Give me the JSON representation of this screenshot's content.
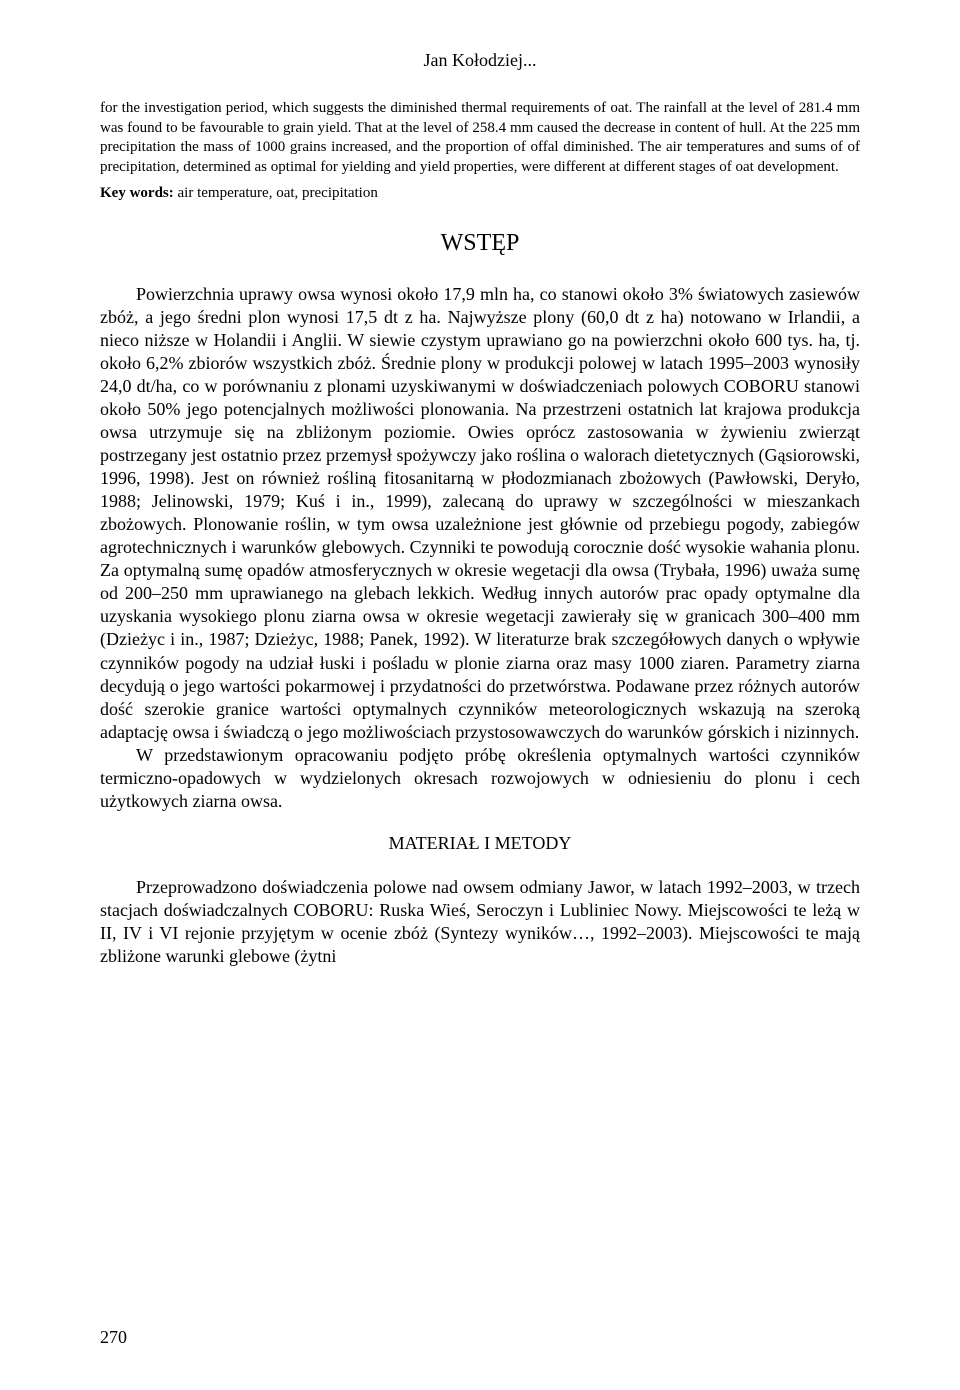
{
  "header": {
    "author": "Jan Kołodziej..."
  },
  "abstract": {
    "text": "for the investigation period, which suggests the diminished thermal requirements of oat. The rainfall at the level of 281.4 mm was found to be favourable to grain yield. That at the level of 258.4 mm caused the decrease in content of hull. At the 225 mm precipitation the mass of 1000 grains increased, and the proportion of offal diminished. The air temperatures and sums of of precipitation, determined as optimal for yielding and yield properties, were different at different stages of oat development."
  },
  "keywords": {
    "label": "Key words:",
    "text": " air temperature, oat, precipitation"
  },
  "sections": {
    "wstep": {
      "title": "WSTĘP",
      "para1": "Powierzchnia uprawy owsa wynosi około 17,9 mln ha, co stanowi około 3% światowych zasiewów zbóż, a jego średni plon wynosi 17,5 dt z ha. Najwyższe plony (60,0 dt z ha) notowano w Irlandii, a nieco niższe w Holandii i Anglii. W siewie czystym uprawiano go na powierzchni około 600 tys. ha, tj. około 6,2% zbiorów wszystkich zbóż. Średnie plony w produkcji polowej w latach 1995–2003 wynosiły 24,0 dt/ha, co w porównaniu z plonami uzyskiwanymi w doświadczeniach polowych COBORU stanowi około 50% jego potencjalnych możliwości plonowania. Na przestrzeni ostatnich lat krajowa produkcja owsa utrzymuje się na zbliżonym poziomie. Owies oprócz zastosowania w żywieniu zwierząt postrzegany jest ostatnio przez przemysł spożywczy jako roślina o walorach dietetycznych (Gąsiorowski, 1996, 1998). Jest on również rośliną fitosanitarną w płodozmianach zbożowych (Pawłowski, Deryło, 1988; Jelinowski, 1979; Kuś i in., 1999), zalecaną do uprawy w szczególności w mieszankach zbożowych. Plonowanie roślin, w tym owsa uzależnione jest głównie od przebiegu pogody, zabiegów agrotechnicznych i warunków glebowych. Czynniki te powodują corocznie dość wysokie wahania plonu. Za optymalną sumę opadów atmosferycznych w okresie wegetacji dla owsa (Trybała, 1996) uważa sumę od 200–250 mm uprawianego na glebach lekkich. Według innych autorów prac opady optymalne dla uzyskania wysokiego plonu ziarna owsa w okresie wegetacji zawierały się w granicach 300–400 mm (Dzieżyc i in., 1987; Dzieżyc, 1988; Panek, 1992). W literaturze brak szczegółowych danych o wpływie czynników pogody na udział łuski i pośladu w plonie ziarna oraz masy 1000 ziaren. Parametry ziarna decydują o jego wartości pokarmowej i przydatności do przetwórstwa. Podawane przez różnych autorów dość szerokie granice wartości optymalnych czynników meteorologicznych wskazują na szeroką adaptację owsa i świadczą o jego możliwościach przystosowawczych do warunków górskich i nizinnych.",
      "para2": "W przedstawionym opracowaniu podjęto próbę określenia optymalnych wartości czynników termiczno-opadowych w wydzielonych okresach rozwojowych w odniesieniu do plonu i cech użytkowych ziarna owsa."
    },
    "material": {
      "title": "MATERIAŁ I METODY",
      "para1": "Przeprowadzono doświadczenia polowe nad owsem odmiany Jawor, w latach 1992–2003, w trzech stacjach doświadczalnych COBORU: Ruska Wieś, Seroczyn i Lubliniec Nowy. Miejscowości te leżą w II, IV i VI rejonie przyjętym w ocenie zbóż (Syntezy wyników…, 1992–2003). Miejscowości te mają zbliżone warunki glebowe (żytni"
    }
  },
  "page": {
    "number": "270"
  }
}
